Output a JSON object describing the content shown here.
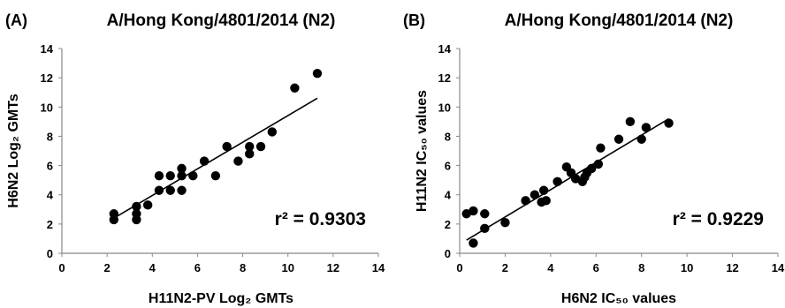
{
  "chart_data": [
    {
      "type": "scatter",
      "panel": "(A)",
      "title": "A/Hong Kong/4801/2014 (N2)",
      "xlabel": "H11N2-PV Log₂ GMTs",
      "ylabel": "H6N2 Log₂ GMTs",
      "xlim": [
        0,
        14
      ],
      "ylim": [
        0,
        14
      ],
      "xticks": [
        "0",
        "2",
        "4",
        "6",
        "8",
        "10",
        "12",
        "14"
      ],
      "yticks": [
        "0",
        "2",
        "4",
        "6",
        "8",
        "10",
        "12",
        "14"
      ],
      "annotation": "r² = 0.9303",
      "trendline": {
        "x": [
          2.3,
          11.3
        ],
        "y": [
          2.4,
          10.6
        ]
      },
      "points": [
        {
          "x": 2.3,
          "y": 2.3
        },
        {
          "x": 2.3,
          "y": 2.7
        },
        {
          "x": 3.3,
          "y": 2.3
        },
        {
          "x": 3.3,
          "y": 2.7
        },
        {
          "x": 3.3,
          "y": 3.2
        },
        {
          "x": 3.8,
          "y": 3.3
        },
        {
          "x": 4.3,
          "y": 4.3
        },
        {
          "x": 4.3,
          "y": 5.3
        },
        {
          "x": 4.8,
          "y": 4.3
        },
        {
          "x": 4.8,
          "y": 5.3
        },
        {
          "x": 5.3,
          "y": 4.3
        },
        {
          "x": 5.3,
          "y": 5.3
        },
        {
          "x": 5.3,
          "y": 5.8
        },
        {
          "x": 5.8,
          "y": 5.3
        },
        {
          "x": 6.3,
          "y": 6.3
        },
        {
          "x": 6.8,
          "y": 5.3
        },
        {
          "x": 7.3,
          "y": 7.3
        },
        {
          "x": 7.8,
          "y": 6.3
        },
        {
          "x": 8.3,
          "y": 6.8
        },
        {
          "x": 8.3,
          "y": 7.3
        },
        {
          "x": 8.8,
          "y": 7.3
        },
        {
          "x": 9.3,
          "y": 8.3
        },
        {
          "x": 10.3,
          "y": 11.3
        },
        {
          "x": 11.3,
          "y": 12.3
        }
      ]
    },
    {
      "type": "scatter",
      "panel": "(B)",
      "title": "A/Hong Kong/4801/2014 (N2)",
      "xlabel": "H6N2 IC₅₀ values",
      "ylabel": "H11N2 IC₅₀ values",
      "xlim": [
        0,
        14
      ],
      "ylim": [
        0,
        14
      ],
      "xticks": [
        "0",
        "2",
        "4",
        "6",
        "8",
        "10",
        "12",
        "14"
      ],
      "yticks": [
        "0",
        "2",
        "4",
        "6",
        "8",
        "10",
        "12",
        "14"
      ],
      "annotation": "r² = 0.9229",
      "trendline": {
        "x": [
          0.3,
          9.2
        ],
        "y": [
          0.9,
          9.2
        ]
      },
      "points": [
        {
          "x": 0.3,
          "y": 2.7
        },
        {
          "x": 0.6,
          "y": 2.9
        },
        {
          "x": 0.6,
          "y": 0.7
        },
        {
          "x": 1.1,
          "y": 1.7
        },
        {
          "x": 1.1,
          "y": 2.7
        },
        {
          "x": 2.0,
          "y": 2.1
        },
        {
          "x": 2.9,
          "y": 3.6
        },
        {
          "x": 3.3,
          "y": 4.0
        },
        {
          "x": 3.6,
          "y": 3.5
        },
        {
          "x": 3.7,
          "y": 4.3
        },
        {
          "x": 3.8,
          "y": 3.6
        },
        {
          "x": 4.3,
          "y": 4.9
        },
        {
          "x": 4.7,
          "y": 5.9
        },
        {
          "x": 4.9,
          "y": 5.5
        },
        {
          "x": 5.1,
          "y": 5.1
        },
        {
          "x": 5.4,
          "y": 4.9
        },
        {
          "x": 5.5,
          "y": 5.2
        },
        {
          "x": 5.6,
          "y": 5.5
        },
        {
          "x": 5.8,
          "y": 5.8
        },
        {
          "x": 6.1,
          "y": 6.1
        },
        {
          "x": 6.2,
          "y": 7.2
        },
        {
          "x": 7.0,
          "y": 7.8
        },
        {
          "x": 7.5,
          "y": 9.0
        },
        {
          "x": 8.0,
          "y": 7.8
        },
        {
          "x": 8.2,
          "y": 8.6
        },
        {
          "x": 9.2,
          "y": 8.9
        }
      ]
    }
  ]
}
